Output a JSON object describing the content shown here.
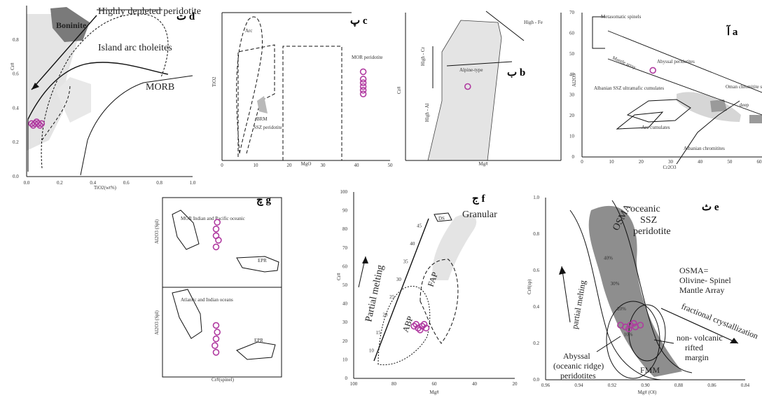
{
  "figure": {
    "colors": {
      "marker": "#b03aa0",
      "shade": "#e4e4e4",
      "dark": "#7a7a7a",
      "line": "#111111"
    }
  },
  "chart_data": [
    {
      "id": "d",
      "type": "scatter",
      "panel_label": "ت d",
      "xlabel": "TiO2(wt%)",
      "ylabel": "Cr#",
      "xlim": [
        0,
        1.0
      ],
      "ylim": [
        0,
        1.0
      ],
      "xticks": [
        "0.0",
        "0.2",
        "0.4",
        "0.6",
        "0.8",
        "1.0"
      ],
      "yticks": [
        "0.0",
        "0.2",
        "0.4",
        "0.6",
        "0.8"
      ],
      "annotations": [
        "Boninite",
        "Highly depleted peridotite",
        "Island arc tholeites",
        "MORB"
      ],
      "points": [
        {
          "x": 0.03,
          "y": 0.31
        },
        {
          "x": 0.05,
          "y": 0.31
        },
        {
          "x": 0.07,
          "y": 0.31
        },
        {
          "x": 0.09,
          "y": 0.31
        },
        {
          "x": 0.04,
          "y": 0.3
        },
        {
          "x": 0.06,
          "y": 0.32
        },
        {
          "x": 0.08,
          "y": 0.3
        }
      ]
    },
    {
      "id": "c",
      "type": "scatter",
      "panel_label": "پ c",
      "xlabel": "MgO",
      "ylabel": "TiO2",
      "xlim": [
        0,
        50
      ],
      "xticks": [
        "0",
        "10",
        "20",
        "30",
        "40",
        "50"
      ],
      "annotations": [
        "Arc",
        "MOR peridotite",
        "BRM",
        "SSZ peridotite"
      ],
      "points": [
        {
          "x": 42,
          "y": 1.2
        },
        {
          "x": 42,
          "y": 1.1
        },
        {
          "x": 42,
          "y": 1.0
        },
        {
          "x": 42,
          "y": 0.95
        },
        {
          "x": 42,
          "y": 1.05
        },
        {
          "x": 42,
          "y": 0.9
        }
      ]
    },
    {
      "id": "b",
      "type": "scatter",
      "panel_label": "ب b",
      "xlabel": "Mg#",
      "ylabel": "Cr#",
      "annotations": [
        "High - Fe",
        "High - Cr",
        "Alpine-type",
        "High - Al"
      ],
      "points": [
        {
          "x": 60,
          "y": 50
        }
      ]
    },
    {
      "id": "a",
      "type": "scatter",
      "panel_label": "آ a",
      "xlabel": "Cr2O3",
      "ylabel": "Al2O3",
      "xlim": [
        0,
        60
      ],
      "ylim": [
        0,
        70
      ],
      "xticks": [
        "0",
        "10",
        "20",
        "30",
        "40",
        "50",
        "60"
      ],
      "yticks": [
        "0",
        "10",
        "20",
        "30",
        "40",
        "50",
        "60",
        "70"
      ],
      "annotations": [
        "Metasomatic spinels",
        "Abyssal peridotites",
        "Mantle array",
        "Oman chromitite shallow",
        "deep",
        "Albanian SSZ ultramafic cumulates",
        "Arc cumulates",
        "Albanian chromitites"
      ],
      "points": [
        {
          "x": 24,
          "y": 42
        }
      ]
    },
    {
      "id": "g",
      "type": "scatter",
      "panel_label": "چ g",
      "xlabel": "Cr#(spinel)",
      "ylabel": "Al2O3 (Spl)",
      "annotations": [
        "MOR Indian and Pacific oceanic",
        "EPR",
        "Atlantic and Indian oceans",
        "EPR"
      ],
      "subplots": [
        {
          "name": "upper",
          "points": [
            {
              "x": 0.45,
              "y": 2.3
            },
            {
              "x": 0.45,
              "y": 2.6
            },
            {
              "x": 0.46,
              "y": 2.9
            },
            {
              "x": 0.47,
              "y": 2.1
            },
            {
              "x": 0.45,
              "y": 1.8
            }
          ]
        },
        {
          "name": "lower",
          "points": [
            {
              "x": 0.45,
              "y": 1.7
            },
            {
              "x": 0.46,
              "y": 2.0
            },
            {
              "x": 0.45,
              "y": 2.3
            },
            {
              "x": 0.44,
              "y": 1.4
            },
            {
              "x": 0.45,
              "y": 1.1
            }
          ]
        }
      ]
    },
    {
      "id": "f",
      "type": "scatter",
      "panel_label": "ج f",
      "xlabel": "Mg#",
      "ylabel": "Cr#",
      "xlim": [
        100,
        20
      ],
      "ylim": [
        0,
        100
      ],
      "xticks": [
        "100",
        "80",
        "60",
        "40",
        "20"
      ],
      "yticks": [
        "0",
        "10",
        "20",
        "30",
        "40",
        "50",
        "60",
        "70",
        "80",
        "90",
        "100"
      ],
      "annotations": [
        "Granular",
        "Partial melting",
        "FAP",
        "ABP",
        "DS"
      ],
      "melting_ticks": [
        "10",
        "15",
        "20",
        "25",
        "30",
        "35",
        "40",
        "45"
      ],
      "points": [
        {
          "x": 66,
          "y": 28
        },
        {
          "x": 68,
          "y": 27
        },
        {
          "x": 70,
          "y": 28
        },
        {
          "x": 64,
          "y": 27
        },
        {
          "x": 67,
          "y": 26
        },
        {
          "x": 69,
          "y": 29
        },
        {
          "x": 65,
          "y": 29
        }
      ]
    },
    {
      "id": "e",
      "type": "scatter",
      "panel_label": "ث e",
      "xlabel": "Mg# (Ol)",
      "ylabel": "Cr#(sp)",
      "xlim": [
        0.96,
        0.84
      ],
      "ylim": [
        0,
        1.0
      ],
      "xticks": [
        "0.96",
        "0.94",
        "0.92",
        "0.90",
        "0.88",
        "0.86",
        "0.84"
      ],
      "yticks": [
        "0.0",
        "0.2",
        "0.4",
        "0.6",
        "0.8",
        "1.0"
      ],
      "annotations": [
        "OSMA",
        "oceanic",
        "SSZ",
        "peridotite",
        "partial melting",
        "OSMA=",
        "Olivine- Spinel",
        "Mantle Array",
        "fractional crystallization",
        "non- volcanic",
        "rifted",
        "margin",
        "Abyssal",
        "(oceanic ridge)",
        "peridotites",
        "FMM"
      ],
      "melting_ticks": [
        "40%",
        "30%",
        "20%",
        "10%"
      ],
      "points": [
        {
          "x": 0.915,
          "y": 0.3
        },
        {
          "x": 0.912,
          "y": 0.29
        },
        {
          "x": 0.909,
          "y": 0.3
        },
        {
          "x": 0.906,
          "y": 0.29
        },
        {
          "x": 0.903,
          "y": 0.3
        },
        {
          "x": 0.91,
          "y": 0.28
        },
        {
          "x": 0.907,
          "y": 0.31
        }
      ]
    }
  ]
}
